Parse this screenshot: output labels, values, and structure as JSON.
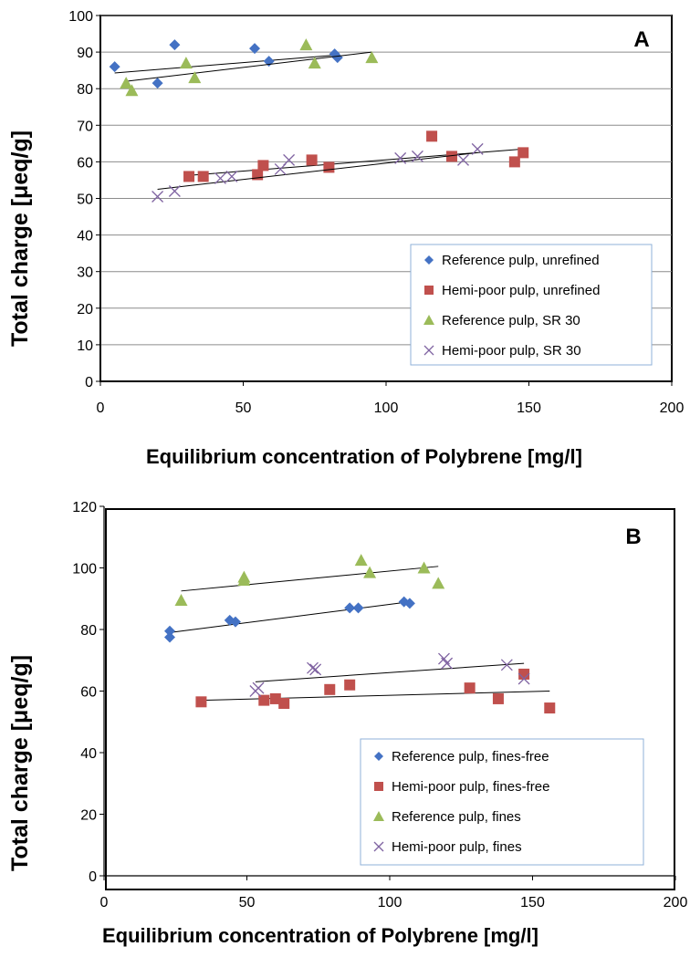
{
  "chart_data": [
    {
      "type": "scatter",
      "panel_label": "A",
      "xlabel": "Equilibrium concentration of Polybrene [mg/l]",
      "ylabel": "Total charge [μeq/g]",
      "xlim": [
        0,
        200
      ],
      "ylim": [
        0,
        100
      ],
      "xticks": [
        0,
        50,
        100,
        150,
        200
      ],
      "yticks": [
        0,
        10,
        20,
        30,
        40,
        50,
        60,
        70,
        80,
        90,
        100
      ],
      "grid": "horizontal",
      "legend_position": "bottom-right",
      "series": [
        {
          "name": "Reference pulp, unrefined",
          "marker": "diamond",
          "color": "#4472C4",
          "points": [
            [
              5,
              86
            ],
            [
              20,
              81.5
            ],
            [
              26,
              92
            ],
            [
              54,
              91
            ],
            [
              59,
              87.5
            ],
            [
              82,
              89.5
            ],
            [
              83,
              88.5
            ]
          ],
          "trendline": [
            [
              5,
              84.3
            ],
            [
              83,
              89.2
            ]
          ]
        },
        {
          "name": "Hemi-poor pulp, unrefined",
          "marker": "square",
          "color": "#C0504D",
          "points": [
            [
              31,
              56
            ],
            [
              36,
              56
            ],
            [
              55,
              56.5
            ],
            [
              57,
              59
            ],
            [
              74,
              60.5
            ],
            [
              80,
              58.5
            ],
            [
              116,
              67
            ],
            [
              123,
              61.5
            ],
            [
              145,
              60
            ],
            [
              148,
              62.5
            ]
          ],
          "trendline": [
            [
              31,
              56.3
            ],
            [
              148,
              63.5
            ]
          ]
        },
        {
          "name": "Reference pulp, SR 30",
          "marker": "triangle",
          "color": "#9BBB59",
          "points": [
            [
              9,
              81.5
            ],
            [
              11,
              79.5
            ],
            [
              30,
              87
            ],
            [
              33,
              83
            ],
            [
              72,
              92
            ],
            [
              75,
              87
            ],
            [
              95,
              88.5
            ]
          ],
          "trendline": [
            [
              9,
              82
            ],
            [
              95,
              90
            ]
          ]
        },
        {
          "name": "Hemi-poor pulp, SR 30",
          "marker": "x",
          "color": "#8064A2",
          "points": [
            [
              20,
              50.5
            ],
            [
              26,
              52
            ],
            [
              42,
              55.5
            ],
            [
              46,
              56
            ],
            [
              63,
              58
            ],
            [
              66,
              60.5
            ],
            [
              105,
              61
            ],
            [
              111,
              61.5
            ],
            [
              127,
              60.5
            ],
            [
              132,
              63.5
            ]
          ],
          "trendline": [
            [
              20,
              52.5
            ],
            [
              132,
              62.5
            ]
          ]
        }
      ]
    },
    {
      "type": "scatter",
      "panel_label": "B",
      "xlabel": "Equilibrium concentration of Polybrene [mg/l]",
      "ylabel": "Total charge [μeq/g]",
      "xlim": [
        0,
        200
      ],
      "ylim": [
        0,
        120
      ],
      "xticks": [
        0,
        50,
        100,
        150,
        200
      ],
      "yticks": [
        0,
        20,
        40,
        60,
        80,
        100,
        120
      ],
      "grid": "none",
      "legend_position": "bottom-right",
      "series": [
        {
          "name": "Reference pulp, fines-free",
          "marker": "diamond",
          "color": "#4472C4",
          "points": [
            [
              23,
              77.5
            ],
            [
              23,
              79.5
            ],
            [
              44,
              83
            ],
            [
              46,
              82.5
            ],
            [
              86,
              87
            ],
            [
              89,
              87
            ],
            [
              105,
              89
            ],
            [
              107,
              88.5
            ]
          ],
          "trendline": [
            [
              23,
              79
            ],
            [
              107,
              89
            ]
          ]
        },
        {
          "name": "Hemi-poor pulp, fines-free",
          "marker": "square",
          "color": "#C0504D",
          "points": [
            [
              34,
              56.5
            ],
            [
              56,
              57
            ],
            [
              60,
              57.5
            ],
            [
              63,
              56
            ],
            [
              79,
              60.5
            ],
            [
              86,
              62
            ],
            [
              128,
              61
            ],
            [
              138,
              57.5
            ],
            [
              147,
              65.5
            ],
            [
              156,
              54.5
            ]
          ],
          "trendline": [
            [
              34,
              57
            ],
            [
              156,
              60
            ]
          ]
        },
        {
          "name": "Reference pulp, fines",
          "marker": "triangle",
          "color": "#9BBB59",
          "points": [
            [
              27,
              89.5
            ],
            [
              49,
              97
            ],
            [
              49,
              96
            ],
            [
              90,
              102.5
            ],
            [
              93,
              98.5
            ],
            [
              112,
              100
            ],
            [
              117,
              95
            ]
          ],
          "trendline": [
            [
              27,
              92.5
            ],
            [
              117,
              100.5
            ]
          ]
        },
        {
          "name": "Hemi-poor pulp, fines",
          "marker": "x",
          "color": "#8064A2",
          "points": [
            [
              53,
              60
            ],
            [
              54,
              61
            ],
            [
              73,
              67.5
            ],
            [
              74,
              67
            ],
            [
              119,
              70.5
            ],
            [
              120,
              69
            ],
            [
              141,
              68.5
            ],
            [
              147,
              64
            ]
          ],
          "trendline": [
            [
              53,
              63
            ],
            [
              147,
              69
            ]
          ]
        }
      ]
    }
  ]
}
